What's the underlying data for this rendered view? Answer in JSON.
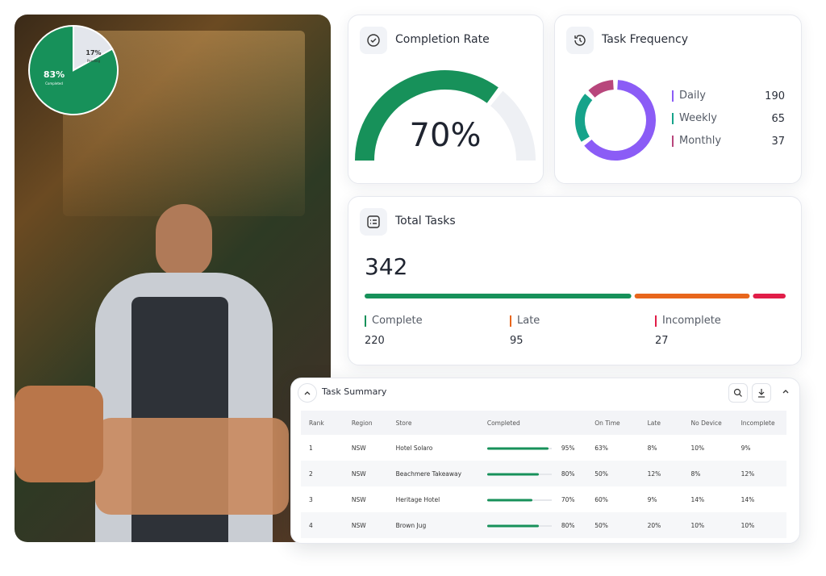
{
  "photo_pie": {
    "type": "pie",
    "labels": [
      "Completed",
      "Pending"
    ],
    "values": [
      83,
      17
    ],
    "value_labels": [
      "83%",
      "17%"
    ],
    "colors": [
      "#17915a",
      "#e3e6ec"
    ]
  },
  "completion_rate": {
    "type": "gauge",
    "title": "Completion Rate",
    "value": 70,
    "value_label": "70%",
    "range": [
      0,
      100
    ],
    "color": "#17915a",
    "track_color": "#eef0f4"
  },
  "task_frequency": {
    "type": "donut",
    "title": "Task Frequency",
    "series": [
      {
        "name": "Daily",
        "value": 190,
        "color": "#8b5cf6"
      },
      {
        "name": "Weekly",
        "value": 65,
        "color": "#16a38a"
      },
      {
        "name": "Monthly",
        "value": 37,
        "color": "#b8467c"
      }
    ]
  },
  "total_tasks": {
    "type": "stacked-bar",
    "title": "Total Tasks",
    "total": 342,
    "series": [
      {
        "name": "Complete",
        "value": 220,
        "color": "#17915a"
      },
      {
        "name": "Late",
        "value": 95,
        "color": "#e8661c"
      },
      {
        "name": "Incomplete",
        "value": 27,
        "color": "#e11d48"
      }
    ]
  },
  "task_summary": {
    "title": "Task Summary",
    "columns": [
      "Rank",
      "Region",
      "Store",
      "Completed",
      "On Time",
      "Late",
      "No Device",
      "Incomplete"
    ],
    "completed_range": [
      0,
      100
    ],
    "rows": [
      [
        1,
        "NSW",
        "Hotel Solaro",
        {
          "value": 95,
          "label": "95%"
        },
        "63%",
        "8%",
        "10%",
        "9%"
      ],
      [
        2,
        "NSW",
        "Beachmere Takeaway",
        {
          "value": 80,
          "label": "80%"
        },
        "50%",
        "12%",
        "8%",
        "12%"
      ],
      [
        3,
        "NSW",
        "Heritage Hotel",
        {
          "value": 70,
          "label": "70%"
        },
        "60%",
        "9%",
        "14%",
        "14%"
      ],
      [
        4,
        "NSW",
        "Brown Jug",
        {
          "value": 80,
          "label": "80%"
        },
        "50%",
        "20%",
        "10%",
        "10%"
      ]
    ]
  }
}
